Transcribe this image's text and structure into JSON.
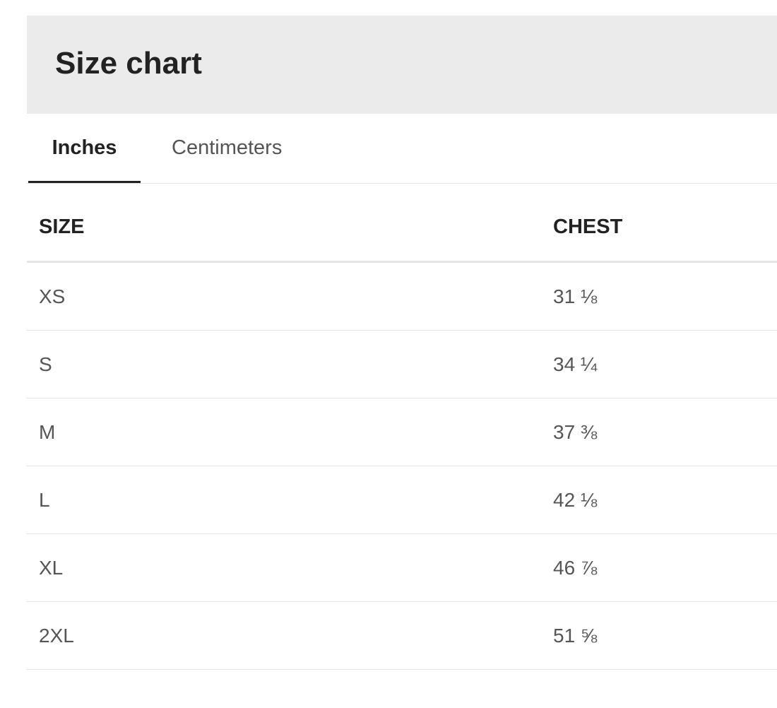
{
  "title": "Size chart",
  "tabs": [
    {
      "label": "Inches",
      "active": true
    },
    {
      "label": "Centimeters",
      "active": false
    }
  ],
  "table": {
    "headers": [
      "SIZE",
      "CHEST"
    ],
    "rows": [
      [
        "XS",
        "31 ⅛"
      ],
      [
        "S",
        "34 ¼"
      ],
      [
        "M",
        "37 ⅜"
      ],
      [
        "L",
        "42 ⅛"
      ],
      [
        "XL",
        "46 ⅞"
      ],
      [
        "2XL",
        "51 ⅝"
      ]
    ]
  }
}
